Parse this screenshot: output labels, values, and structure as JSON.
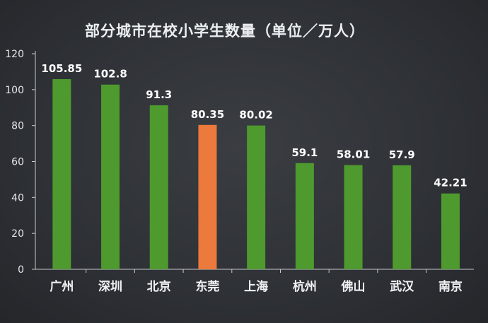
{
  "chart_data": {
    "type": "bar",
    "title": "部分城市在校小学生数量（单位／万人）",
    "categories": [
      "广州",
      "深圳",
      "北京",
      "东莞",
      "上海",
      "杭州",
      "佛山",
      "武汉",
      "南京"
    ],
    "values": [
      105.85,
      102.8,
      91.3,
      80.35,
      80.02,
      59.1,
      58.01,
      57.9,
      42.21
    ],
    "value_labels": [
      "105.85",
      "102.8",
      "91.3",
      "80.35",
      "80.02",
      "59.1",
      "58.01",
      "57.9",
      "42.21"
    ],
    "highlight_index": 3,
    "ylim": [
      0,
      120
    ],
    "yticks": [
      0,
      20,
      40,
      60,
      80,
      100,
      120
    ],
    "grid": false,
    "legend": "none",
    "colors": {
      "bar": "#4e9a2e",
      "highlight": "#ec7a3c",
      "axis": "#c8cacc",
      "background": "#2f3237"
    }
  }
}
